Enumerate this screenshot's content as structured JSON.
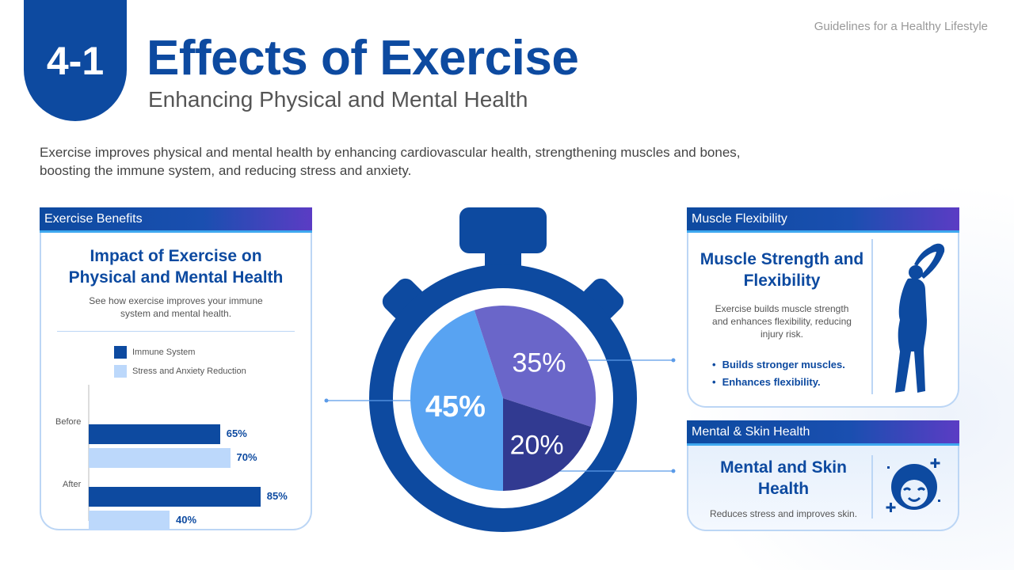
{
  "header": {
    "badge": "4-1",
    "title": "Effects of Exercise",
    "subtitle": "Enhancing Physical and Mental Health",
    "top_label": "Guidelines for a Healthy Lifestyle"
  },
  "intro": "Exercise improves physical and mental health by enhancing cardiovascular health, strengthening muscles and bones, boosting the immune system, and reducing stress and anxiety.",
  "left_panel": {
    "header": "Exercise Benefits",
    "title": "Impact of Exercise on Physical and Mental Health",
    "description": "See how exercise improves your immune system and mental health."
  },
  "right_top": {
    "header": "Muscle Flexibility",
    "title": "Muscle Strength and Flexibility",
    "description": "Exercise builds muscle strength and enhances flexibility, reducing injury risk.",
    "bullets": [
      "Builds stronger muscles.",
      "Enhances flexibility."
    ],
    "icon": "stretching-person-icon"
  },
  "right_bottom": {
    "header": "Mental & Skin Health",
    "title": "Mental and Skin Health",
    "description": "Reduces stress and improves skin.",
    "icon": "face-care-icon"
  },
  "colors": {
    "primary": "#0d4aa0",
    "light_bar": "#bcd8fb",
    "pie_light": "#58a3f2",
    "pie_purple": "#6a66c9",
    "pie_navy": "#313a91"
  },
  "chart_data": [
    {
      "type": "bar",
      "orientation": "horizontal",
      "categories": [
        "Before",
        "After"
      ],
      "series": [
        {
          "name": "Immune System",
          "values": [
            65,
            85
          ],
          "labels": [
            "65%",
            "85%"
          ]
        },
        {
          "name": "Stress and Anxiety Reduction",
          "values": [
            70,
            40
          ],
          "labels": [
            "70%",
            "40%"
          ]
        }
      ],
      "xlim": [
        0,
        100
      ],
      "legend": "top",
      "grid": false
    },
    {
      "type": "pie",
      "values": [
        45,
        35,
        20
      ],
      "labels": [
        "45%",
        "35%",
        "20%"
      ]
    }
  ]
}
